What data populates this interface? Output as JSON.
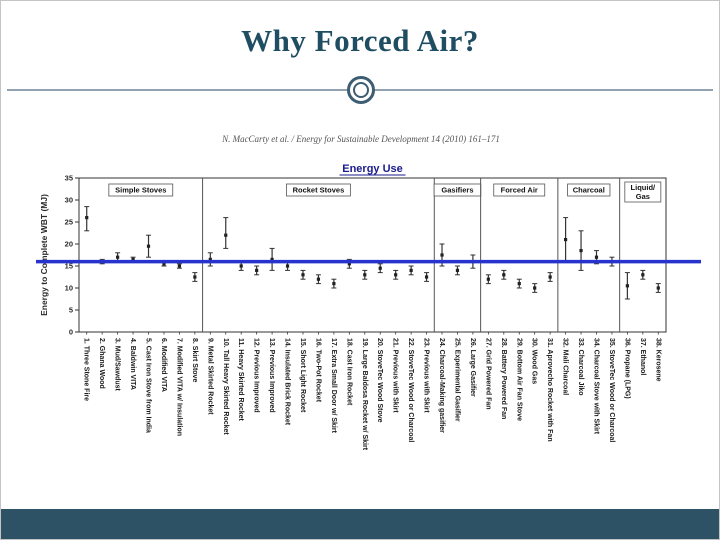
{
  "slide": {
    "title": "Why Forced Air?",
    "citation": "N. MacCarty et al. / Energy for Sustainable Development 14 (2010) 161–171"
  },
  "colors": {
    "slide_title": "#1f4e63",
    "footer_band": "#2d5266",
    "chart_title": "#1b1b8e",
    "axis_ink": "#2a2a2a",
    "benchmark_blue": "#2633cc"
  },
  "chart_data": {
    "type": "scatter",
    "title": "Energy Use",
    "ylabel": "Energy to Complete WBT (MJ)",
    "xlabel": "",
    "ylim": [
      0,
      35
    ],
    "yticks": [
      0,
      5,
      10,
      15,
      20,
      25,
      30,
      35
    ],
    "grid": false,
    "legend": "none",
    "benchmark": {
      "value": 16,
      "color": "#2633cc",
      "description": "horizontal blue reference line"
    },
    "groups": [
      {
        "label": "Simple Stoves",
        "count": 8
      },
      {
        "label": "Rocket Stoves",
        "count": 15
      },
      {
        "label": "Gasifiers",
        "count": 3
      },
      {
        "label": "Forced Air",
        "count": 5
      },
      {
        "label": "Charcoal",
        "count": 4
      },
      {
        "label": "Liquid/ Gas",
        "count": 3
      }
    ],
    "points": [
      {
        "label": "1. Three Stone Fire",
        "mean": 26,
        "lo": 23,
        "hi": 28.5
      },
      {
        "label": "2. Ghana Wood",
        "mean": 16,
        "lo": 15.5,
        "hi": 16.5
      },
      {
        "label": "3. Mud/Sawdust",
        "mean": 17,
        "lo": 16,
        "hi": 18
      },
      {
        "label": "4. Baldwin VITA",
        "mean": 16.5,
        "lo": 16,
        "hi": 17
      },
      {
        "label": "5. Cast Iron Stove from India",
        "mean": 19.5,
        "lo": 17,
        "hi": 22
      },
      {
        "label": "6. Modified VITA",
        "mean": 15.5,
        "lo": 15,
        "hi": 16
      },
      {
        "label": "7. Modified VITA w/ Insulation",
        "mean": 15,
        "lo": 14.5,
        "hi": 15.5
      },
      {
        "label": "8. Skirt Stove",
        "mean": 12.5,
        "lo": 11.5,
        "hi": 13.5
      },
      {
        "label": "9. Metal Skirted Rocket",
        "mean": 16.5,
        "lo": 15,
        "hi": 18
      },
      {
        "label": "10. Tall Heavy Skirted Rocket",
        "mean": 22,
        "lo": 19,
        "hi": 26
      },
      {
        "label": "11. Heavy Skirted Rocket",
        "mean": 15,
        "lo": 14,
        "hi": 16
      },
      {
        "label": "12. Previous Improved",
        "mean": 14,
        "lo": 13,
        "hi": 15
      },
      {
        "label": "13. Previous Improved",
        "mean": 16.5,
        "lo": 14,
        "hi": 19
      },
      {
        "label": "14. Insulated Brick Rocket",
        "mean": 15,
        "lo": 14,
        "hi": 16
      },
      {
        "label": "15. Short Light Rocket",
        "mean": 13,
        "lo": 12,
        "hi": 14
      },
      {
        "label": "16. Two-Pot Rocket",
        "mean": 12,
        "lo": 11,
        "hi": 13
      },
      {
        "label": "17. Extra Small Door w/ Skirt",
        "mean": 11,
        "lo": 10,
        "hi": 12
      },
      {
        "label": "18. Cast Iron Rocket",
        "mean": 15.5,
        "lo": 14.5,
        "hi": 16.5
      },
      {
        "label": "19. Large Baldosa Rocket w/ Skirt",
        "mean": 13,
        "lo": 12,
        "hi": 14
      },
      {
        "label": "20. StoveTec Wood Stove",
        "mean": 14.5,
        "lo": 13.5,
        "hi": 15.5
      },
      {
        "label": "21. Previous with Skirt",
        "mean": 13,
        "lo": 12,
        "hi": 14
      },
      {
        "label": "22. StoveTec Wood or Charcoal",
        "mean": 14,
        "lo": 13,
        "hi": 15
      },
      {
        "label": "23. Previous with Skirt",
        "mean": 12.5,
        "lo": 11.5,
        "hi": 13.5
      },
      {
        "label": "24. Charcoal-Making gasifier",
        "mean": 17.5,
        "lo": 15,
        "hi": 20
      },
      {
        "label": "25. Experimental Gasifier",
        "mean": 14,
        "lo": 13,
        "hi": 15
      },
      {
        "label": "26. Large Gasifier",
        "mean": 16,
        "lo": 14.5,
        "hi": 17.5
      },
      {
        "label": "27. Grid Powered Fan",
        "mean": 12,
        "lo": 11,
        "hi": 13
      },
      {
        "label": "28. Battery Powered Fan",
        "mean": 13,
        "lo": 12,
        "hi": 14
      },
      {
        "label": "29. Bottom Air Fan Stove",
        "mean": 11,
        "lo": 10,
        "hi": 12
      },
      {
        "label": "30. Wood Gas",
        "mean": 10,
        "lo": 9,
        "hi": 11
      },
      {
        "label": "31. Aprovecho Rocket with Fan",
        "mean": 12.5,
        "lo": 11.5,
        "hi": 13.5
      },
      {
        "label": "32. Mali Charcoal",
        "mean": 21,
        "lo": 16,
        "hi": 26
      },
      {
        "label": "33. Charcoal Jiko",
        "mean": 18.5,
        "lo": 14,
        "hi": 23
      },
      {
        "label": "34. Charcoal Stove with Skirt",
        "mean": 17,
        "lo": 15.5,
        "hi": 18.5
      },
      {
        "label": "35. StoveTec Wood or Charcoal",
        "mean": 16,
        "lo": 15,
        "hi": 17
      },
      {
        "label": "36. Propane (LPG)",
        "mean": 10.5,
        "lo": 7.5,
        "hi": 13.5
      },
      {
        "label": "37. Ethanol",
        "mean": 13,
        "lo": 12,
        "hi": 14
      },
      {
        "label": "38. Kerosene",
        "mean": 10,
        "lo": 9,
        "hi": 11
      }
    ]
  }
}
